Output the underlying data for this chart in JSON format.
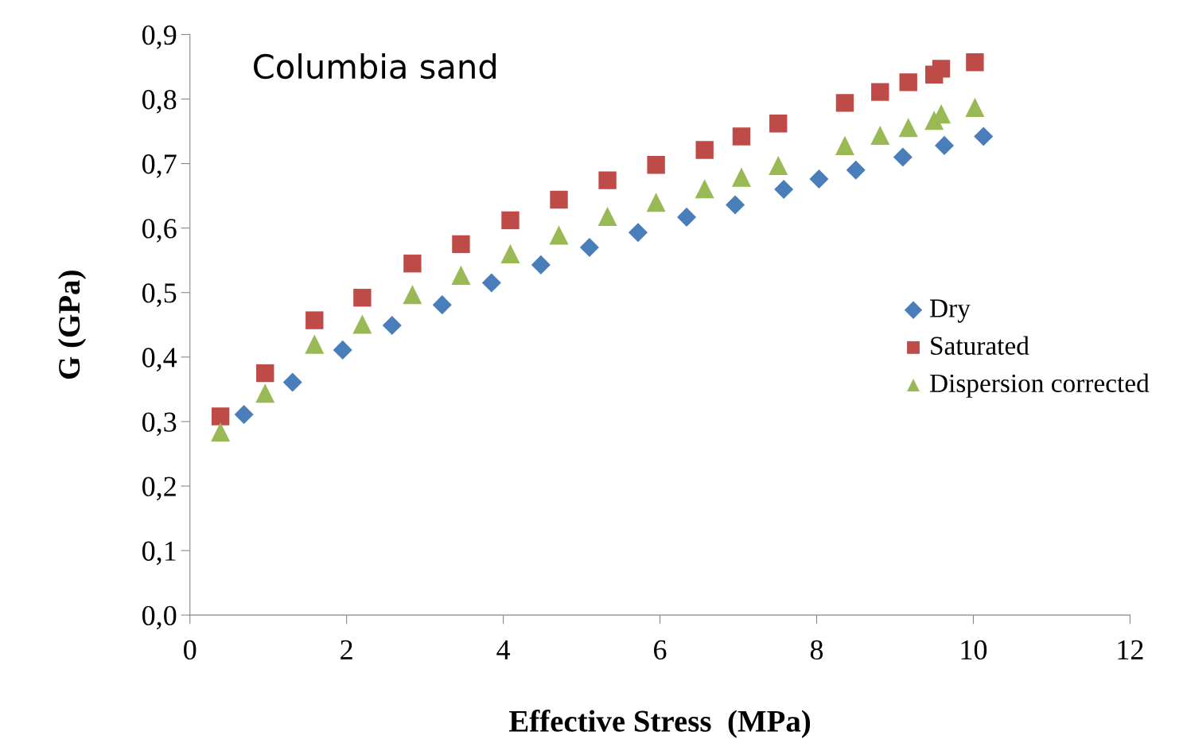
{
  "chart_data": {
    "type": "scatter",
    "xlabel": "Effective Stress  (MPa)",
    "ylabel": "G (GPa)",
    "annotations": [
      "Columbia sand"
    ],
    "xlim": [
      0,
      12
    ],
    "xticks": [
      0,
      2,
      4,
      6,
      8,
      10,
      12
    ],
    "ylim": [
      0,
      0.9
    ],
    "yticks": [
      {
        "value": 0,
        "label": "0,0"
      },
      {
        "value": 0.1,
        "label": "0,1"
      },
      {
        "value": 0.2,
        "label": "0,2"
      },
      {
        "value": 0.3,
        "label": "0,3"
      },
      {
        "value": 0.4,
        "label": "0,4"
      },
      {
        "value": 0.5,
        "label": "0,5"
      },
      {
        "value": 0.6,
        "label": "0,6"
      },
      {
        "value": 0.7,
        "label": "0,7"
      },
      {
        "value": 0.8,
        "label": "0,8"
      },
      {
        "value": 0.9,
        "label": "0,9"
      }
    ],
    "grid": false,
    "legend": "right",
    "series": [
      {
        "name": "Dry",
        "color": "#4a7ebb",
        "marker": "diamond",
        "x": [
          0.69,
          1.31,
          1.95,
          2.58,
          3.22,
          3.85,
          4.48,
          5.1,
          5.72,
          6.34,
          6.96,
          7.58,
          8.03,
          8.5,
          9.1,
          9.63,
          10.13
        ],
        "values": [
          0.311,
          0.361,
          0.411,
          0.449,
          0.481,
          0.515,
          0.543,
          0.57,
          0.593,
          0.617,
          0.636,
          0.66,
          0.676,
          0.69,
          0.71,
          0.728,
          0.742
        ]
      },
      {
        "name": "Saturated",
        "color": "#be4b48",
        "marker": "square",
        "x": [
          0.39,
          0.96,
          1.59,
          2.2,
          2.84,
          3.46,
          4.09,
          4.71,
          5.33,
          5.95,
          6.57,
          7.04,
          7.51,
          8.36,
          8.81,
          9.17,
          9.5,
          9.59,
          10.02
        ],
        "values": [
          0.308,
          0.375,
          0.457,
          0.492,
          0.545,
          0.575,
          0.612,
          0.644,
          0.674,
          0.698,
          0.721,
          0.742,
          0.762,
          0.794,
          0.811,
          0.826,
          0.838,
          0.847,
          0.857
        ]
      },
      {
        "name": "Dispersion corrected",
        "color": "#98b954",
        "marker": "triangle",
        "x": [
          0.39,
          0.96,
          1.59,
          2.2,
          2.84,
          3.46,
          4.09,
          4.71,
          5.33,
          5.95,
          6.57,
          7.04,
          7.51,
          8.36,
          8.81,
          9.17,
          9.5,
          9.59,
          10.02
        ],
        "values": [
          0.284,
          0.344,
          0.42,
          0.451,
          0.497,
          0.527,
          0.56,
          0.589,
          0.618,
          0.64,
          0.661,
          0.679,
          0.697,
          0.728,
          0.744,
          0.756,
          0.767,
          0.777,
          0.787
        ]
      }
    ]
  }
}
